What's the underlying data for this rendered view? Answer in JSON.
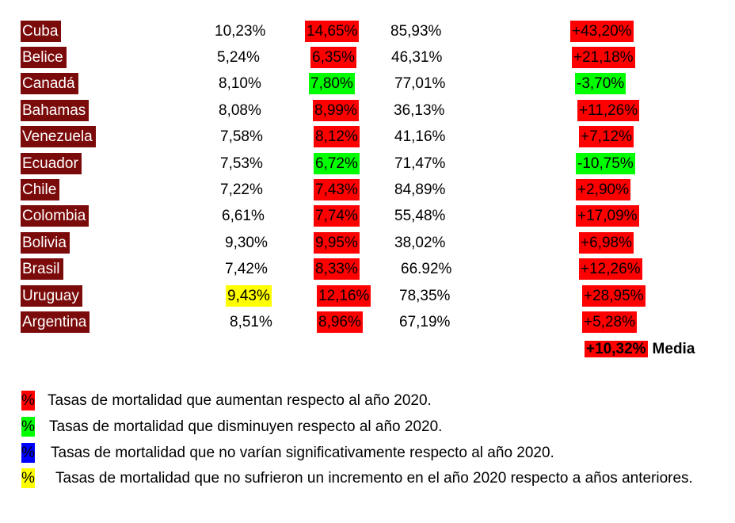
{
  "colors": {
    "country_bg": "#7b0a0a",
    "increase": "#ff0000",
    "decrease": "#00ff00",
    "no_change": "#0000ff",
    "no_increase_prior": "#ffff00"
  },
  "rows": [
    {
      "country": "Cuba",
      "v1": "10,23%",
      "v2": "14,65%",
      "v3": "85,93%",
      "v4": "+43,20%"
    },
    {
      "country": "Belice",
      "v1": "5,24%",
      "v2": "6,35%",
      "v3": "46,31%",
      "v4": "+21,18%"
    },
    {
      "country": "Canadá",
      "v1": "8,10%",
      "v2": "7,80%",
      "v3": "77,01%",
      "v4": "-3,70%"
    },
    {
      "country": "Bahamas",
      "v1": "8,08%",
      "v2": "8,99%",
      "v3": "36,13%",
      "v4": "+11,26%"
    },
    {
      "country": "Venezuela",
      "v1": "7,58%",
      "v2": "8,12%",
      "v3": "41,16%",
      "v4": "+7,12%"
    },
    {
      "country": "Ecuador",
      "v1": "7,53%",
      "v2": "6,72%",
      "v3": "71,47%",
      "v4": "-10,75%"
    },
    {
      "country": "Chile",
      "v1": "7,22%",
      "v2": "7,43%",
      "v3": "84,89%",
      "v4": "+2,90%"
    },
    {
      "country": "Colombia",
      "v1": "6,61%",
      "v2": "7,74%",
      "v3": "55,48%",
      "v4": "+17,09%"
    },
    {
      "country": "Bolivia",
      "v1": "9,30%",
      "v2": "9,95%",
      "v3": "38,02%",
      "v4": "+6,98%"
    },
    {
      "country": "Brasil",
      "v1": "7,42%",
      "v2": "8,33%",
      "v3": "66.92%",
      "v4": "+12,26%"
    },
    {
      "country": "Uruguay",
      "v1": "9,43%",
      "v2": "12,16%",
      "v3": "78,35%",
      "v4": "+28,95%"
    },
    {
      "country": "Argentina",
      "v1": "8,51%",
      "v2": "8,96%",
      "v3": "67,19%",
      "v4": "+5,28%"
    }
  ],
  "media": {
    "value": "+10,32%",
    "label": "Media"
  },
  "legend": {
    "symbol": "%",
    "increase": "Tasas de mortalidad que aumentan respecto al año 2020.",
    "decrease": "Tasas de mortalidad que disminuyen respecto al año 2020.",
    "no_change": "Tasas de mortalidad que no varían significativamente respecto al año 2020.",
    "no_increase_prior": "Tasas de mortalidad que no sufrieron un incremento en el año 2020 respecto a años anteriores."
  }
}
